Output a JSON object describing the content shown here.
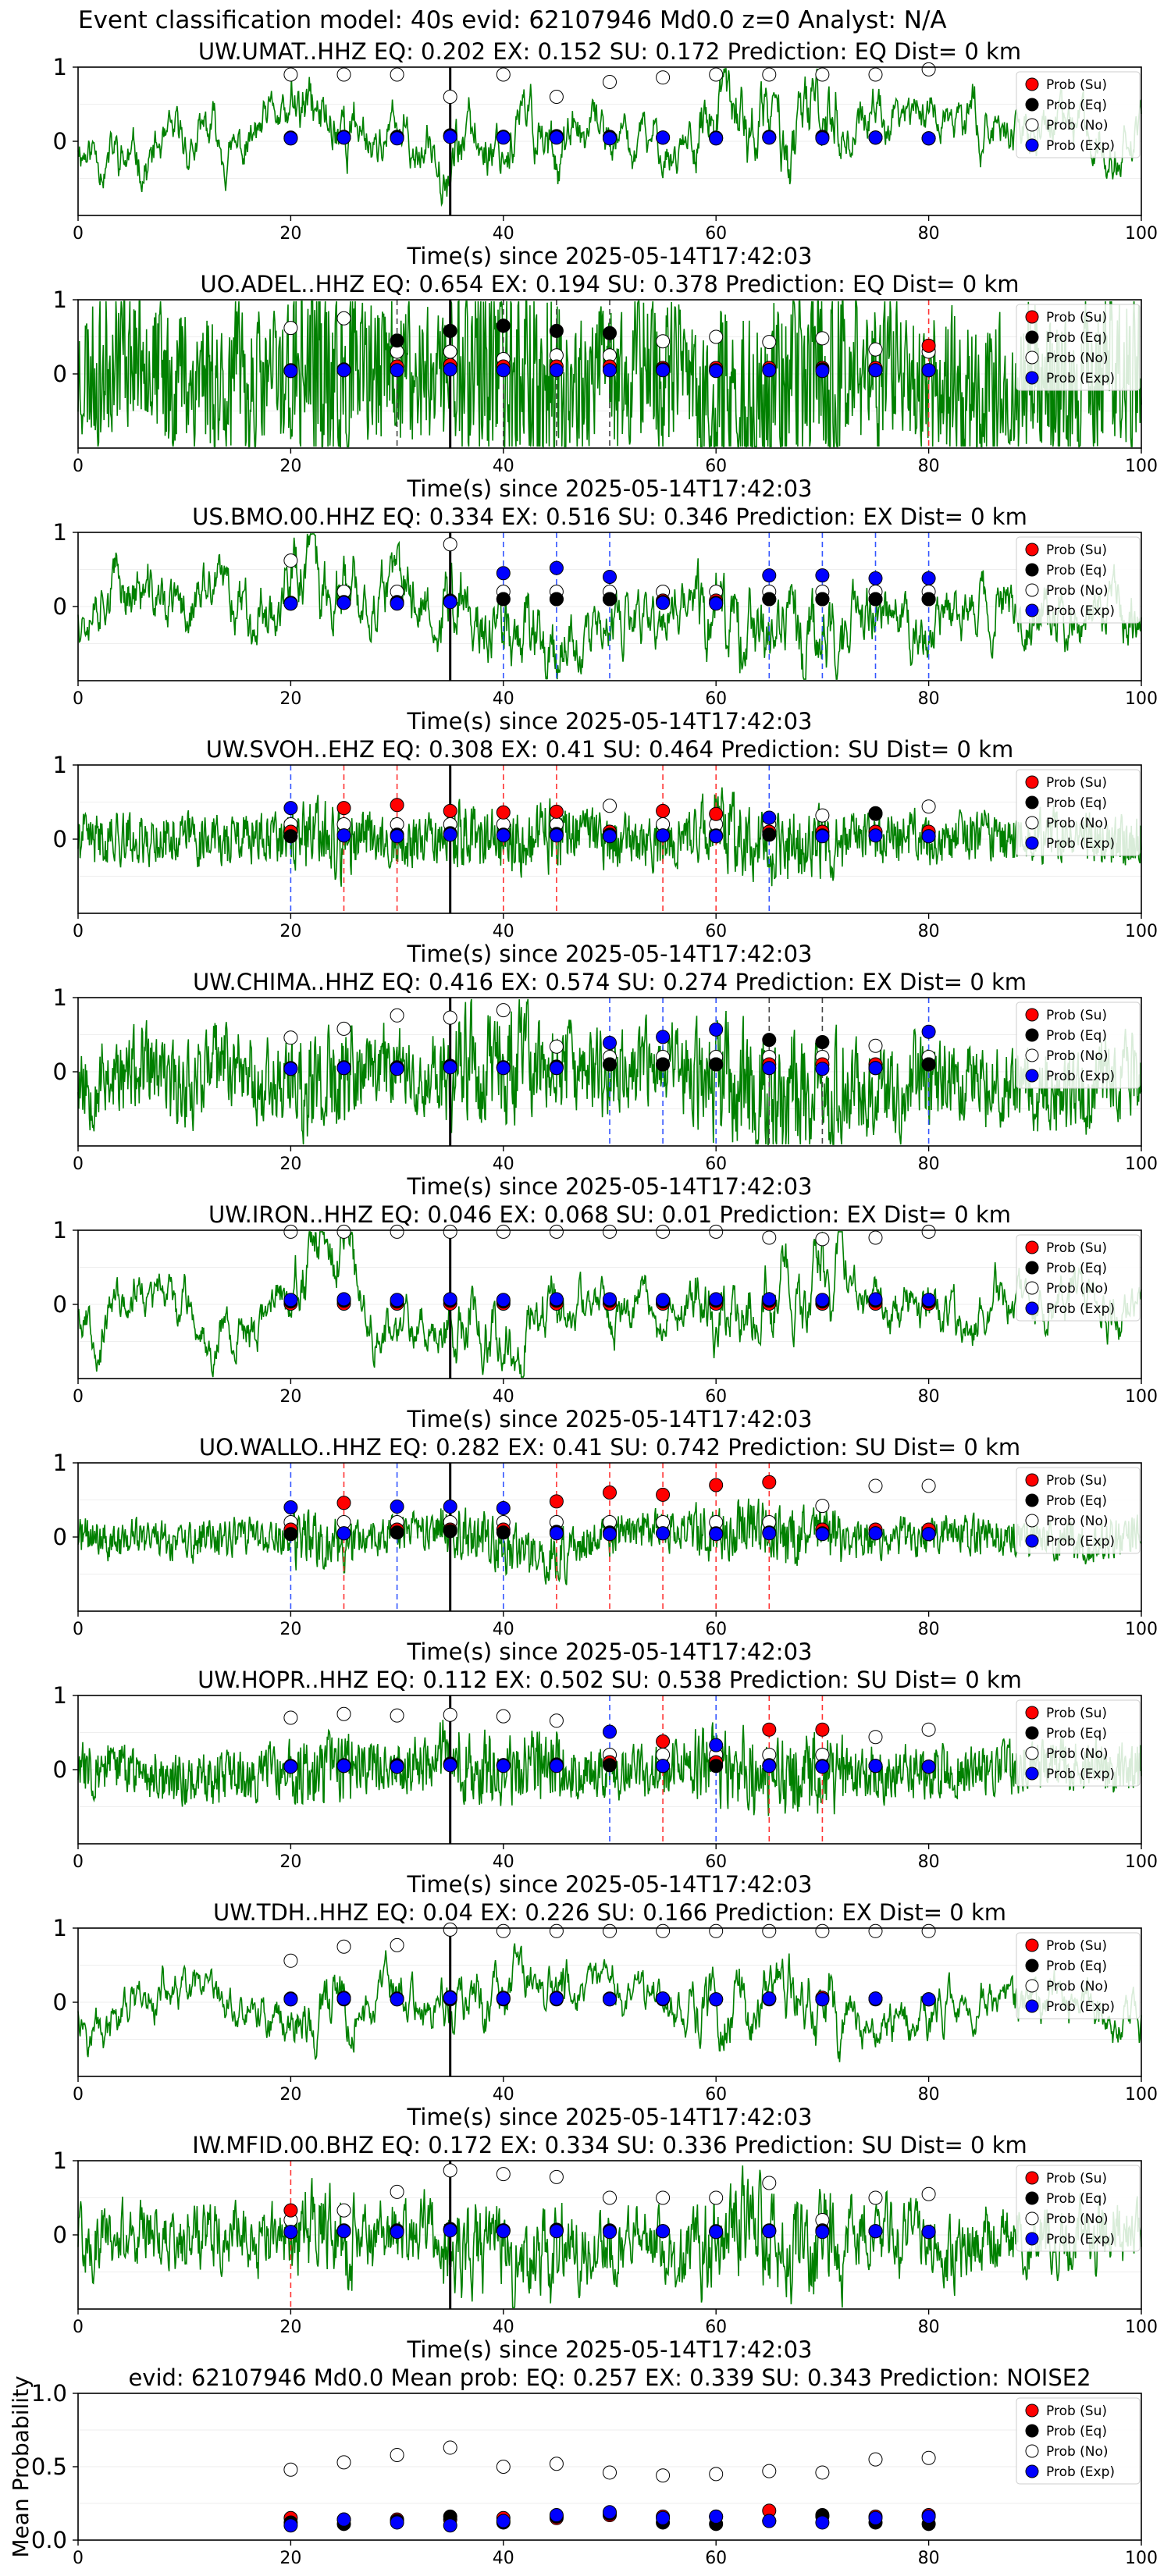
{
  "header": {
    "title": "Event classification model: 40s evid: 62107946 Md0.0 z=0 Analyst: N/A"
  },
  "legend_labels": [
    "Prob (Su)",
    "Prob (Eq)",
    "Prob (No)",
    "Prob (Exp)"
  ],
  "colors": {
    "su": "#ff0000",
    "eq": "#000000",
    "no": "#ffffff",
    "exp": "#0000ff",
    "trace": "#008000",
    "pick": "#000000"
  },
  "chart_data": [
    {
      "type": "line",
      "title": "UW.UMAT..HHZ   EQ: 0.202  EX: 0.152  SU: 0.172   Prediction: EQ    Dist= 0 km",
      "xlabel": "Time(s) since 2025-05-14T17:42:03",
      "xlim": [
        0,
        100
      ],
      "ylim": [
        -1,
        1
      ],
      "xticks": [
        "0",
        "20",
        "40",
        "60",
        "80",
        "100"
      ],
      "yticks": [
        "1",
        "0"
      ],
      "pick_time": 35,
      "seed": 11,
      "amp": 0.55,
      "smooth": 0.85,
      "times": [
        20,
        25,
        30,
        35,
        40,
        45,
        50,
        55,
        60,
        65,
        70,
        75,
        80
      ],
      "su": [
        0.05,
        0.06,
        0.05,
        0.07,
        0.06,
        0.06,
        0.05,
        0.05,
        0.04,
        0.05,
        0.06,
        0.05,
        0.04
      ],
      "eq": [
        0.04,
        0.05,
        0.06,
        0.08,
        0.06,
        0.07,
        0.06,
        0.05,
        0.05,
        0.06,
        0.05,
        0.05,
        0.04
      ],
      "no": [
        0.9,
        0.9,
        0.9,
        0.6,
        0.9,
        0.6,
        0.8,
        0.86,
        0.9,
        0.9,
        0.9,
        0.9,
        0.97
      ],
      "exp": [
        0.04,
        0.05,
        0.04,
        0.06,
        0.05,
        0.05,
        0.04,
        0.05,
        0.04,
        0.05,
        0.04,
        0.05,
        0.04
      ],
      "lines": []
    },
    {
      "type": "line",
      "title": "UO.ADEL..HHZ   EQ: 0.654  EX: 0.194  SU: 0.378   Prediction: EQ    Dist= 0 km",
      "xlabel": "Time(s) since 2025-05-14T17:42:03",
      "xlim": [
        0,
        100
      ],
      "ylim": [
        -1,
        1
      ],
      "xticks": [
        "0",
        "20",
        "40",
        "60",
        "80",
        "100"
      ],
      "yticks": [
        "1",
        "0"
      ],
      "pick_time": 35,
      "seed": 23,
      "amp": 0.55,
      "smooth": 0.2,
      "times": [
        20,
        25,
        30,
        35,
        40,
        45,
        50,
        55,
        60,
        65,
        70,
        75,
        80
      ],
      "su": [
        0.05,
        0.06,
        0.1,
        0.12,
        0.1,
        0.1,
        0.1,
        0.08,
        0.08,
        0.08,
        0.08,
        0.08,
        0.38
      ],
      "eq": [
        0.04,
        0.05,
        0.45,
        0.58,
        0.65,
        0.58,
        0.55,
        0.06,
        0.05,
        0.05,
        0.06,
        0.05,
        0.05
      ],
      "no": [
        0.62,
        0.75,
        0.3,
        0.3,
        0.2,
        0.25,
        0.25,
        0.44,
        0.5,
        0.43,
        0.48,
        0.33,
        0.3
      ],
      "exp": [
        0.04,
        0.05,
        0.05,
        0.06,
        0.05,
        0.05,
        0.05,
        0.05,
        0.04,
        0.05,
        0.04,
        0.05,
        0.05
      ],
      "lines": [
        {
          "t": 30,
          "c": "eq"
        },
        {
          "t": 40,
          "c": "eq"
        },
        {
          "t": 45,
          "c": "eq"
        },
        {
          "t": 50,
          "c": "eq"
        },
        {
          "t": 80,
          "c": "su"
        }
      ]
    },
    {
      "type": "line",
      "title": "US.BMO.00.HHZ   EQ: 0.334  EX: 0.516  SU: 0.346   Prediction: EX    Dist= 0 km",
      "xlabel": "Time(s) since 2025-05-14T17:42:03",
      "xlim": [
        0,
        100
      ],
      "ylim": [
        -1,
        1
      ],
      "xticks": [
        "0",
        "20",
        "40",
        "60",
        "80",
        "100"
      ],
      "yticks": [
        "1",
        "0"
      ],
      "pick_time": 35,
      "seed": 37,
      "amp": 0.45,
      "smooth": 0.75,
      "times": [
        20,
        25,
        30,
        35,
        40,
        45,
        50,
        55,
        60,
        65,
        70,
        75,
        80
      ],
      "su": [
        0.05,
        0.06,
        0.05,
        0.07,
        0.1,
        0.1,
        0.1,
        0.08,
        0.08,
        0.1,
        0.1,
        0.1,
        0.1
      ],
      "eq": [
        0.04,
        0.05,
        0.06,
        0.08,
        0.1,
        0.1,
        0.1,
        0.06,
        0.05,
        0.1,
        0.1,
        0.1,
        0.1
      ],
      "no": [
        0.62,
        0.2,
        0.2,
        0.84,
        0.2,
        0.2,
        0.2,
        0.2,
        0.2,
        0.2,
        0.2,
        0.2,
        0.2
      ],
      "exp": [
        0.04,
        0.05,
        0.04,
        0.06,
        0.45,
        0.52,
        0.4,
        0.05,
        0.04,
        0.42,
        0.42,
        0.38,
        0.38
      ],
      "lines": [
        {
          "t": 40,
          "c": "exp"
        },
        {
          "t": 45,
          "c": "exp"
        },
        {
          "t": 50,
          "c": "exp"
        },
        {
          "t": 65,
          "c": "exp"
        },
        {
          "t": 70,
          "c": "exp"
        },
        {
          "t": 75,
          "c": "exp"
        },
        {
          "t": 80,
          "c": "exp"
        }
      ]
    },
    {
      "type": "line",
      "title": "UW.SVOH..EHZ   EQ: 0.308  EX: 0.41  SU: 0.464   Prediction: SU    Dist= 0 km",
      "xlabel": "Time(s) since 2025-05-14T17:42:03",
      "xlim": [
        0,
        100
      ],
      "ylim": [
        -1,
        1
      ],
      "xticks": [
        "0",
        "20",
        "40",
        "60",
        "80",
        "100"
      ],
      "yticks": [
        "1",
        "0"
      ],
      "pick_time": 35,
      "seed": 41,
      "amp": 0.2,
      "smooth": 0.3,
      "times": [
        20,
        25,
        30,
        35,
        40,
        45,
        50,
        55,
        60,
        65,
        70,
        75,
        80
      ],
      "su": [
        0.1,
        0.42,
        0.46,
        0.38,
        0.36,
        0.37,
        0.1,
        0.38,
        0.34,
        0.1,
        0.1,
        0.1,
        0.1
      ],
      "eq": [
        0.04,
        0.05,
        0.06,
        0.08,
        0.06,
        0.07,
        0.06,
        0.05,
        0.05,
        0.06,
        0.05,
        0.35,
        0.04
      ],
      "no": [
        0.2,
        0.2,
        0.2,
        0.2,
        0.2,
        0.2,
        0.45,
        0.2,
        0.2,
        0.2,
        0.32,
        0.34,
        0.44
      ],
      "exp": [
        0.42,
        0.05,
        0.04,
        0.06,
        0.05,
        0.05,
        0.04,
        0.05,
        0.04,
        0.29,
        0.04,
        0.05,
        0.04
      ],
      "lines": [
        {
          "t": 20,
          "c": "exp"
        },
        {
          "t": 25,
          "c": "su"
        },
        {
          "t": 30,
          "c": "su"
        },
        {
          "t": 40,
          "c": "su"
        },
        {
          "t": 45,
          "c": "su"
        },
        {
          "t": 55,
          "c": "su"
        },
        {
          "t": 60,
          "c": "su"
        },
        {
          "t": 65,
          "c": "exp"
        }
      ]
    },
    {
      "type": "line",
      "title": "UW.CHIMA..HHZ   EQ: 0.416  EX: 0.574  SU: 0.274   Prediction: EX    Dist= 0 km",
      "xlabel": "Time(s) since 2025-05-14T17:42:03",
      "xlim": [
        0,
        100
      ],
      "ylim": [
        -1,
        1
      ],
      "xticks": [
        "0",
        "20",
        "40",
        "60",
        "80",
        "100"
      ],
      "yticks": [
        "1",
        "0"
      ],
      "pick_time": 35,
      "seed": 53,
      "amp": 0.35,
      "smooth": 0.35,
      "times": [
        20,
        25,
        30,
        35,
        40,
        45,
        50,
        55,
        60,
        65,
        70,
        75,
        80
      ],
      "su": [
        0.05,
        0.06,
        0.05,
        0.07,
        0.06,
        0.06,
        0.1,
        0.1,
        0.1,
        0.1,
        0.1,
        0.1,
        0.1
      ],
      "eq": [
        0.04,
        0.05,
        0.06,
        0.08,
        0.06,
        0.07,
        0.1,
        0.1,
        0.1,
        0.43,
        0.4,
        0.05,
        0.1
      ],
      "no": [
        0.46,
        0.58,
        0.76,
        0.73,
        0.83,
        0.34,
        0.2,
        0.2,
        0.2,
        0.2,
        0.2,
        0.35,
        0.2
      ],
      "exp": [
        0.04,
        0.05,
        0.04,
        0.06,
        0.05,
        0.05,
        0.39,
        0.47,
        0.57,
        0.05,
        0.04,
        0.05,
        0.54
      ],
      "lines": [
        {
          "t": 50,
          "c": "exp"
        },
        {
          "t": 55,
          "c": "exp"
        },
        {
          "t": 60,
          "c": "exp"
        },
        {
          "t": 65,
          "c": "eq"
        },
        {
          "t": 70,
          "c": "eq"
        },
        {
          "t": 80,
          "c": "exp"
        }
      ]
    },
    {
      "type": "line",
      "title": "UW.IRON..HHZ   EQ: 0.046  EX: 0.068  SU: 0.01   Prediction: EX    Dist= 0 km",
      "xlabel": "Time(s) since 2025-05-14T17:42:03",
      "xlim": [
        0,
        100
      ],
      "ylim": [
        -1,
        1
      ],
      "xticks": [
        "0",
        "20",
        "40",
        "60",
        "80",
        "100"
      ],
      "yticks": [
        "1",
        "0"
      ],
      "pick_time": 35,
      "seed": 67,
      "amp": 0.55,
      "smooth": 0.85,
      "times": [
        20,
        25,
        30,
        35,
        40,
        45,
        50,
        55,
        60,
        65,
        70,
        75,
        80
      ],
      "su": [
        0.01,
        0.01,
        0.01,
        0.01,
        0.01,
        0.01,
        0.01,
        0.01,
        0.01,
        0.01,
        0.01,
        0.01,
        0.01
      ],
      "eq": [
        0.04,
        0.05,
        0.04,
        0.05,
        0.04,
        0.05,
        0.05,
        0.04,
        0.05,
        0.05,
        0.04,
        0.05,
        0.04
      ],
      "no": [
        0.98,
        0.98,
        0.98,
        0.98,
        0.98,
        0.98,
        0.98,
        0.98,
        0.98,
        0.9,
        0.88,
        0.9,
        0.98
      ],
      "exp": [
        0.06,
        0.07,
        0.06,
        0.07,
        0.06,
        0.07,
        0.07,
        0.06,
        0.07,
        0.07,
        0.06,
        0.07,
        0.06
      ],
      "lines": []
    },
    {
      "type": "line",
      "title": "UO.WALLO..HHZ   EQ: 0.282  EX: 0.41  SU: 0.742   Prediction: SU    Dist= 0 km",
      "xlabel": "Time(s) since 2025-05-14T17:42:03",
      "xlim": [
        0,
        100
      ],
      "ylim": [
        -1,
        1
      ],
      "xticks": [
        "0",
        "20",
        "40",
        "60",
        "80",
        "100"
      ],
      "yticks": [
        "1",
        "0"
      ],
      "pick_time": 35,
      "seed": 71,
      "amp": 0.15,
      "smooth": 0.3,
      "times": [
        20,
        25,
        30,
        35,
        40,
        45,
        50,
        55,
        60,
        65,
        70,
        75,
        80
      ],
      "su": [
        0.1,
        0.46,
        0.1,
        0.1,
        0.1,
        0.48,
        0.6,
        0.57,
        0.7,
        0.74,
        0.1,
        0.1,
        0.1
      ],
      "eq": [
        0.04,
        0.05,
        0.06,
        0.08,
        0.06,
        0.07,
        0.06,
        0.05,
        0.05,
        0.06,
        0.05,
        0.05,
        0.04
      ],
      "no": [
        0.2,
        0.2,
        0.2,
        0.2,
        0.2,
        0.2,
        0.2,
        0.2,
        0.2,
        0.2,
        0.42,
        0.69,
        0.69
      ],
      "exp": [
        0.4,
        0.05,
        0.41,
        0.41,
        0.39,
        0.05,
        0.04,
        0.05,
        0.04,
        0.05,
        0.04,
        0.05,
        0.04
      ],
      "lines": [
        {
          "t": 20,
          "c": "exp"
        },
        {
          "t": 25,
          "c": "su"
        },
        {
          "t": 30,
          "c": "exp"
        },
        {
          "t": 40,
          "c": "exp"
        },
        {
          "t": 45,
          "c": "su"
        },
        {
          "t": 50,
          "c": "su"
        },
        {
          "t": 55,
          "c": "su"
        },
        {
          "t": 60,
          "c": "su"
        },
        {
          "t": 65,
          "c": "su"
        }
      ]
    },
    {
      "type": "line",
      "title": "UW.HOPR..HHZ   EQ: 0.112  EX: 0.502  SU: 0.538   Prediction: SU    Dist= 0 km",
      "xlabel": "Time(s) since 2025-05-14T17:42:03",
      "xlim": [
        0,
        100
      ],
      "ylim": [
        -1,
        1
      ],
      "xticks": [
        "0",
        "20",
        "40",
        "60",
        "80",
        "100"
      ],
      "yticks": [
        "1",
        "0"
      ],
      "pick_time": 35,
      "seed": 83,
      "amp": 0.2,
      "smooth": 0.25,
      "times": [
        20,
        25,
        30,
        35,
        40,
        45,
        50,
        55,
        60,
        65,
        70,
        75,
        80
      ],
      "su": [
        0.05,
        0.06,
        0.05,
        0.07,
        0.06,
        0.06,
        0.1,
        0.38,
        0.1,
        0.54,
        0.54,
        0.05,
        0.04
      ],
      "eq": [
        0.04,
        0.05,
        0.06,
        0.08,
        0.06,
        0.07,
        0.06,
        0.05,
        0.05,
        0.06,
        0.05,
        0.05,
        0.04
      ],
      "no": [
        0.7,
        0.75,
        0.73,
        0.74,
        0.72,
        0.66,
        0.2,
        0.2,
        0.2,
        0.2,
        0.2,
        0.44,
        0.54
      ],
      "exp": [
        0.04,
        0.05,
        0.04,
        0.06,
        0.05,
        0.05,
        0.51,
        0.05,
        0.33,
        0.05,
        0.04,
        0.05,
        0.04
      ],
      "lines": [
        {
          "t": 50,
          "c": "exp"
        },
        {
          "t": 55,
          "c": "su"
        },
        {
          "t": 60,
          "c": "exp"
        },
        {
          "t": 65,
          "c": "su"
        },
        {
          "t": 70,
          "c": "su"
        }
      ]
    },
    {
      "type": "line",
      "title": "UW.TDH..HHZ   EQ: 0.04  EX: 0.226  SU: 0.166   Prediction: EX    Dist= 0 km",
      "xlabel": "Time(s) since 2025-05-14T17:42:03",
      "xlim": [
        0,
        100
      ],
      "ylim": [
        -1,
        1
      ],
      "xticks": [
        "0",
        "20",
        "40",
        "60",
        "80",
        "100"
      ],
      "yticks": [
        "1",
        "0"
      ],
      "pick_time": 35,
      "seed": 97,
      "amp": 0.5,
      "smooth": 0.85,
      "times": [
        20,
        25,
        30,
        35,
        40,
        45,
        50,
        55,
        60,
        65,
        70,
        75,
        80
      ],
      "su": [
        0.05,
        0.06,
        0.05,
        0.07,
        0.06,
        0.06,
        0.05,
        0.05,
        0.04,
        0.05,
        0.06,
        0.05,
        0.04
      ],
      "eq": [
        0.04,
        0.04,
        0.04,
        0.04,
        0.04,
        0.04,
        0.04,
        0.04,
        0.04,
        0.04,
        0.04,
        0.04,
        0.04
      ],
      "no": [
        0.56,
        0.75,
        0.77,
        0.98,
        0.96,
        0.96,
        0.96,
        0.96,
        0.96,
        0.96,
        0.96,
        0.96,
        0.96
      ],
      "exp": [
        0.04,
        0.05,
        0.04,
        0.06,
        0.05,
        0.05,
        0.04,
        0.05,
        0.04,
        0.05,
        0.04,
        0.05,
        0.04
      ],
      "lines": []
    },
    {
      "type": "line",
      "title": "IW.MFID.00.BHZ   EQ: 0.172  EX: 0.334  SU: 0.336   Prediction: SU    Dist= 0 km",
      "xlabel": "Time(s) since 2025-05-14T17:42:03",
      "xlim": [
        0,
        100
      ],
      "ylim": [
        -1,
        1
      ],
      "xticks": [
        "0",
        "20",
        "40",
        "60",
        "80",
        "100"
      ],
      "yticks": [
        "1",
        "0"
      ],
      "pick_time": 35,
      "seed": 101,
      "amp": 0.4,
      "smooth": 0.6,
      "times": [
        20,
        25,
        30,
        35,
        40,
        45,
        50,
        55,
        60,
        65,
        70,
        75,
        80
      ],
      "su": [
        0.33,
        0.06,
        0.05,
        0.07,
        0.06,
        0.06,
        0.05,
        0.05,
        0.04,
        0.05,
        0.06,
        0.05,
        0.04
      ],
      "eq": [
        0.04,
        0.05,
        0.06,
        0.08,
        0.06,
        0.07,
        0.06,
        0.05,
        0.05,
        0.06,
        0.05,
        0.05,
        0.04
      ],
      "no": [
        0.2,
        0.33,
        0.58,
        0.87,
        0.82,
        0.78,
        0.5,
        0.5,
        0.5,
        0.7,
        0.2,
        0.5,
        0.55
      ],
      "exp": [
        0.04,
        0.05,
        0.04,
        0.06,
        0.05,
        0.05,
        0.04,
        0.05,
        0.04,
        0.05,
        0.04,
        0.05,
        0.04
      ],
      "lines": [
        {
          "t": 20,
          "c": "su"
        }
      ]
    },
    {
      "type": "scatter",
      "title": "evid: 62107946  Md0.0   Mean prob:   EQ: 0.257  EX: 0.339  SU: 0.343   Prediction: NOISE2",
      "xlabel": "",
      "ylabel": "Mean Probability",
      "xlim": [
        0,
        100
      ],
      "ylim": [
        0,
        1
      ],
      "xticks": [
        "0",
        "20",
        "40",
        "60",
        "80",
        "100"
      ],
      "yticks": [
        "1.0",
        "0.5",
        "0.0"
      ],
      "times": [
        20,
        25,
        30,
        35,
        40,
        45,
        50,
        55,
        60,
        65,
        70,
        75,
        80
      ],
      "su": [
        0.15,
        0.14,
        0.14,
        0.14,
        0.15,
        0.15,
        0.17,
        0.16,
        0.16,
        0.2,
        0.16,
        0.16,
        0.17
      ],
      "eq": [
        0.12,
        0.11,
        0.13,
        0.16,
        0.12,
        0.16,
        0.18,
        0.12,
        0.11,
        0.13,
        0.17,
        0.12,
        0.11
      ],
      "no": [
        0.48,
        0.53,
        0.58,
        0.63,
        0.5,
        0.52,
        0.46,
        0.44,
        0.45,
        0.47,
        0.46,
        0.55,
        0.56
      ],
      "exp": [
        0.1,
        0.14,
        0.12,
        0.1,
        0.13,
        0.17,
        0.19,
        0.15,
        0.16,
        0.13,
        0.12,
        0.15,
        0.16
      ]
    }
  ]
}
